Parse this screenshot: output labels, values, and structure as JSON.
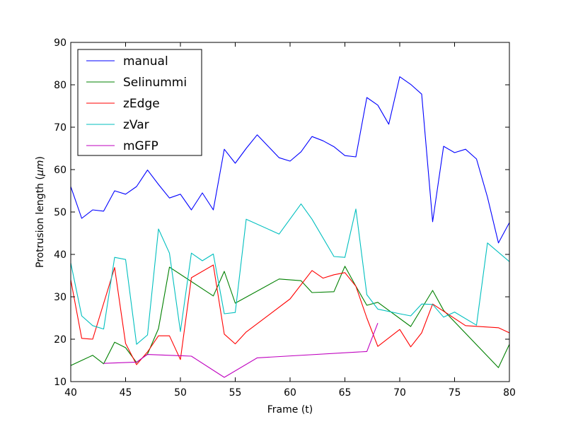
{
  "chart_data": {
    "type": "line",
    "title": "",
    "xlabel": "Frame (t)",
    "ylabel": "Protrusion length (μm)",
    "ylabel_main": "Protrusion length (",
    "ylabel_unit": "μm",
    "ylabel_close": ")",
    "xlim": [
      40,
      80
    ],
    "ylim": [
      10,
      90
    ],
    "xticks": [
      40,
      45,
      50,
      55,
      60,
      65,
      70,
      75,
      80
    ],
    "yticks": [
      10,
      20,
      30,
      40,
      50,
      60,
      70,
      80,
      90
    ],
    "grid": false,
    "legend_position": "top-left",
    "series": [
      {
        "name": "manual",
        "color": "#0000ff",
        "x": [
          40,
          41,
          42,
          43,
          44,
          45,
          46,
          47,
          48,
          49,
          50,
          51,
          52,
          53,
          54,
          55,
          56,
          57,
          58,
          59,
          60,
          61,
          62,
          63,
          64,
          65,
          66,
          67,
          68,
          69,
          70,
          71,
          72,
          73,
          74,
          75,
          76,
          77,
          78,
          79,
          80
        ],
        "y": [
          56,
          48.5,
          50.5,
          50.2,
          55,
          54.2,
          56,
          59.9,
          56.5,
          53.3,
          54.2,
          50.5,
          54.5,
          50.5,
          64.8,
          61.5,
          65,
          68.2,
          65.5,
          62.8,
          62,
          64.2,
          67.8,
          66.8,
          65.4,
          63.3,
          63,
          77,
          75.2,
          70.7,
          81.9,
          80.1,
          77.8,
          47.7,
          65.5,
          64,
          64.8,
          62.5,
          53.5,
          42.7,
          47.5
        ]
      },
      {
        "name": "Selinummi",
        "color": "#008000",
        "x": [
          40,
          42,
          43,
          44,
          45,
          46,
          47,
          48,
          49,
          53,
          54,
          55,
          59,
          61,
          62,
          64,
          65,
          66,
          67,
          68,
          71,
          73,
          74,
          79,
          80
        ],
        "y": [
          13.8,
          16.2,
          14.2,
          19.3,
          18,
          14.5,
          16.5,
          22.5,
          37,
          30.2,
          36,
          28.5,
          34.2,
          33.8,
          31,
          31.2,
          37.2,
          32.5,
          28,
          28.7,
          23,
          31.5,
          26.8,
          13.3,
          18.8
        ]
      },
      {
        "name": "zEdge",
        "color": "#ff0000",
        "x": [
          40,
          41,
          42,
          44,
          45,
          46,
          47,
          48,
          49,
          50,
          51,
          53,
          54,
          55,
          56,
          60,
          62,
          63,
          64,
          65,
          66,
          67,
          68,
          70,
          71,
          72,
          73,
          76,
          79,
          80
        ],
        "y": [
          34,
          20.2,
          20,
          36.9,
          19,
          14,
          17,
          20.8,
          20.8,
          15.2,
          34.5,
          37.5,
          21.2,
          18.9,
          21.7,
          29.5,
          36.2,
          34.4,
          35.2,
          35.7,
          32.5,
          25,
          18.3,
          22.3,
          18.2,
          21.5,
          28.3,
          23.2,
          22.7,
          21.5
        ]
      },
      {
        "name": "zVar",
        "color": "#00bfbf",
        "x": [
          40,
          41,
          42,
          43,
          44,
          45,
          46,
          47,
          48,
          49,
          50,
          51,
          52,
          53,
          54,
          55,
          56,
          59,
          61,
          62,
          64,
          65,
          66,
          67,
          68,
          70,
          71,
          72,
          73,
          74,
          75,
          77,
          78,
          80
        ],
        "y": [
          38,
          25.5,
          23.2,
          22.4,
          39.3,
          38.8,
          18.8,
          21,
          46,
          40.3,
          21.8,
          40.3,
          38.5,
          40.1,
          26,
          26.3,
          48.3,
          44.8,
          51.9,
          48.3,
          39.5,
          39.3,
          50.7,
          30.5,
          27.1,
          26,
          25.5,
          28.3,
          28.2,
          25.2,
          26.4,
          23.3,
          42.7,
          38.3
        ]
      },
      {
        "name": "mGFP",
        "color": "#bf00bf",
        "x": [
          43,
          46,
          47,
          51,
          54,
          57,
          67,
          68
        ],
        "y": [
          14.3,
          14.6,
          16.4,
          16,
          11,
          15.6,
          17.1,
          23.8
        ]
      }
    ]
  }
}
